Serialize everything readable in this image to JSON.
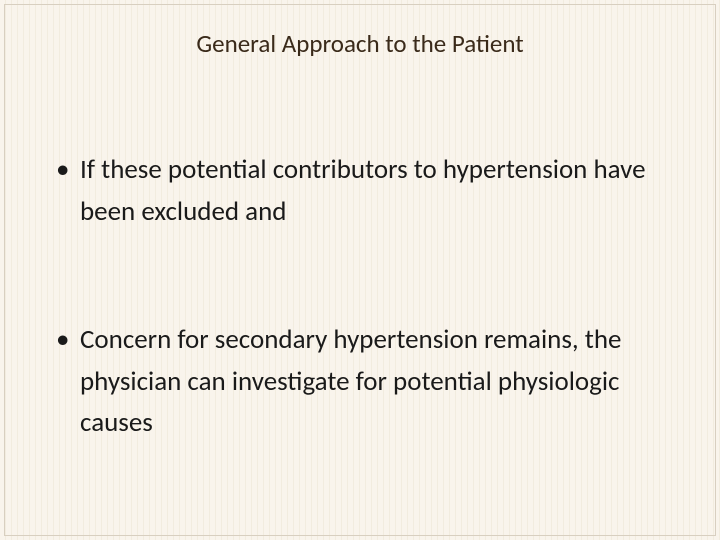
{
  "slide": {
    "title": "General Approach to the Patient",
    "bullets": [
      "If these potential contributors to hypertension have been excluded and",
      "Concern for secondary hypertension remains, the physician can investigate for potential physiologic causes"
    ],
    "background_stripe_color_1": "#f9f4ec",
    "background_stripe_color_2": "#f2ecdf",
    "title_color": "#3a2a1a",
    "text_color": "#1a1a1a",
    "title_fontsize": 25,
    "body_fontsize": 27
  }
}
